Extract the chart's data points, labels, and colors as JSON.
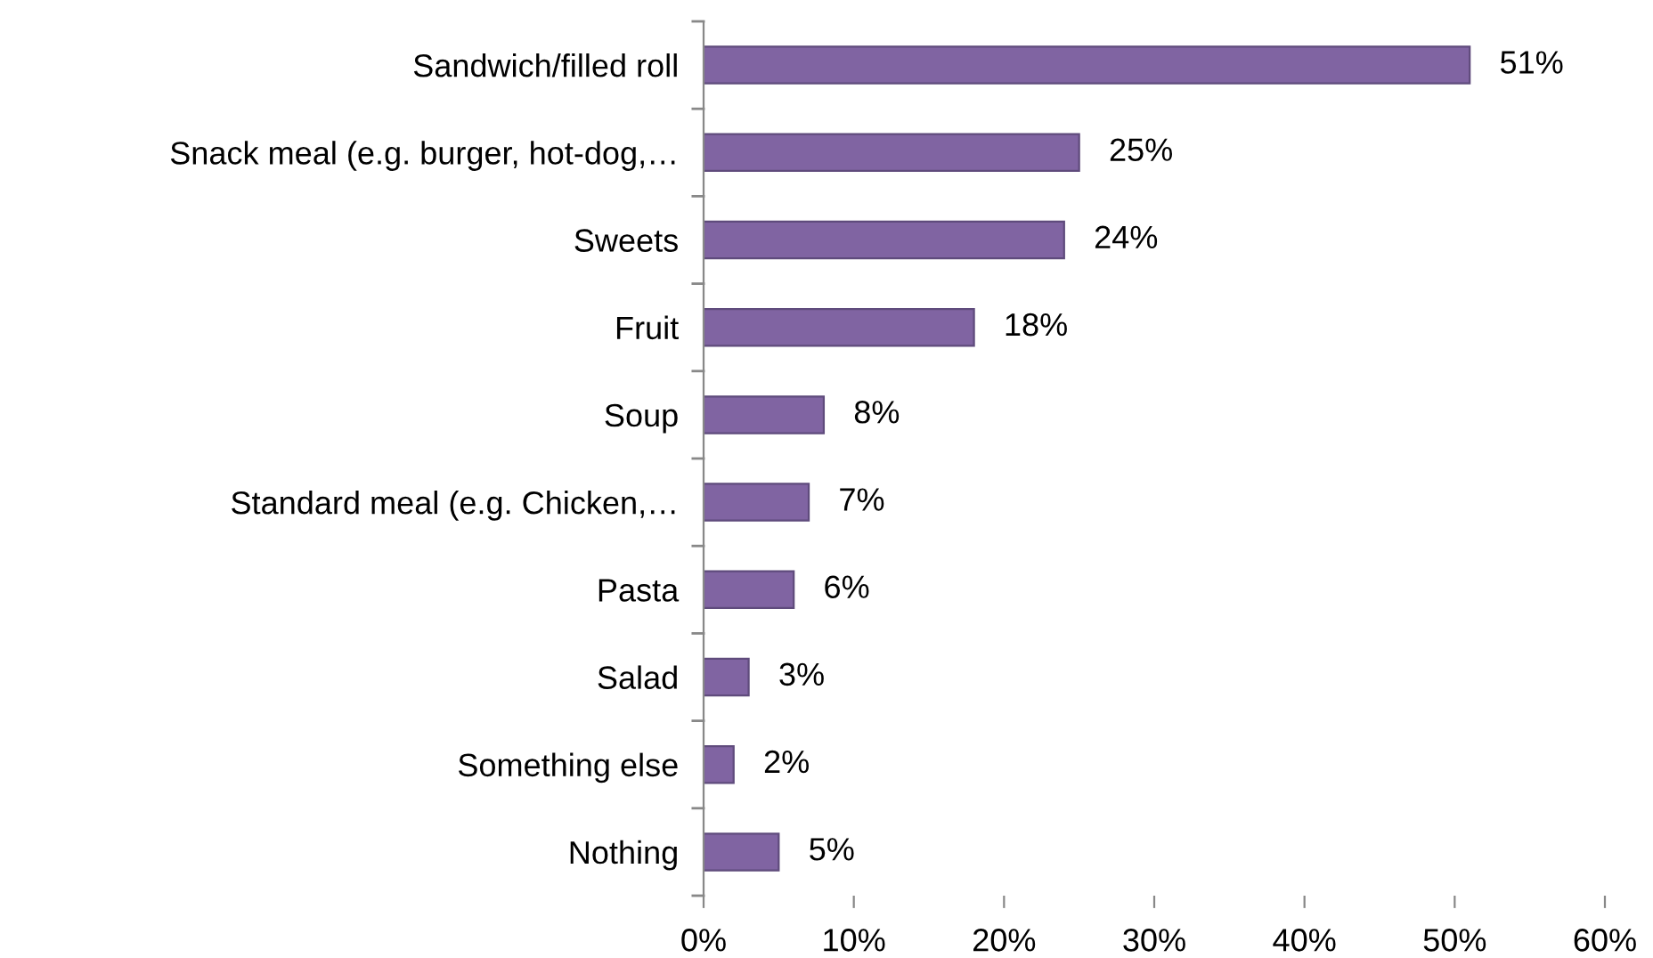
{
  "chart_data": {
    "type": "bar",
    "orientation": "horizontal",
    "categories": [
      "Sandwich/filled roll",
      "Snack meal (e.g. burger, hot-dog,…",
      "Sweets",
      "Fruit",
      "Soup",
      "Standard meal (e.g. Chicken,…",
      "Pasta",
      "Salad",
      "Something else",
      "Nothing"
    ],
    "values": [
      51,
      25,
      24,
      18,
      8,
      7,
      6,
      3,
      2,
      5
    ],
    "value_labels": [
      "51%",
      "25%",
      "24%",
      "18%",
      "8%",
      "7%",
      "6%",
      "3%",
      "2%",
      "5%"
    ],
    "color": "#8064a2",
    "xlim": [
      0,
      60
    ],
    "xticks": [
      {
        "value": 0,
        "label": "0%"
      },
      {
        "value": 10,
        "label": "10%"
      },
      {
        "value": 20,
        "label": "20%"
      },
      {
        "value": 30,
        "label": "30%"
      },
      {
        "value": 40,
        "label": "40%"
      },
      {
        "value": 50,
        "label": "50%"
      },
      {
        "value": 60,
        "label": "60%"
      }
    ],
    "grid": false,
    "legend": false
  }
}
